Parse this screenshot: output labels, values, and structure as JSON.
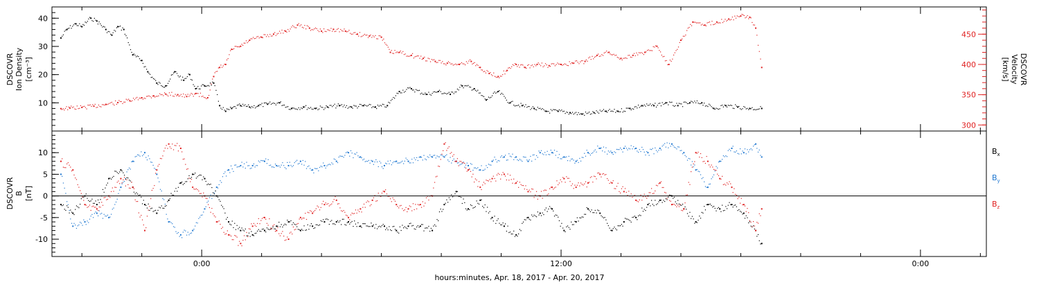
{
  "colors": {
    "black": "#000000",
    "blue": "#1f77d0",
    "red": "#e02020"
  },
  "chart_data": [
    {
      "type": "scatter",
      "panel": "plasma",
      "left_axis": {
        "label_lines": [
          "DSCOVR",
          "Ion Density",
          "[cm⁻³]"
        ],
        "ylim": [
          0,
          44
        ],
        "ticks": [
          10,
          20,
          30,
          40
        ],
        "tick_labels": [
          "10",
          "20",
          "30",
          "40"
        ]
      },
      "right_axis": {
        "label_lines": [
          "DSCOVR",
          "Velocity",
          "[km/s]"
        ],
        "ylim": [
          290,
          495
        ],
        "ticks": [
          300,
          350,
          400,
          450
        ],
        "tick_labels": [
          "300",
          "350",
          "400",
          "450"
        ]
      },
      "series": [
        {
          "color": "black",
          "axis": "left",
          "x": [
            -4.7,
            -4.5,
            -4.2,
            -4.0,
            -3.7,
            -3.5,
            -3.2,
            -3.0,
            -2.8,
            -2.6,
            -2.3,
            -2.0,
            -1.8,
            -1.5,
            -1.2,
            -0.9,
            -0.6,
            -0.4,
            -0.2,
            0.1,
            0.4,
            0.6,
            0.8,
            1.0,
            1.3,
            1.6,
            1.9,
            2.2,
            2.6,
            3.0,
            3.4,
            3.8,
            4.2,
            4.6,
            5.0,
            5.4,
            5.8,
            6.2,
            6.6,
            7.0,
            7.5,
            7.9,
            8.3,
            8.7,
            9.1,
            9.5,
            9.9,
            10.3,
            10.7,
            11.1,
            11.5,
            11.9,
            12.3,
            12.7,
            13.1,
            13.5,
            13.9,
            14.3,
            14.7,
            15.1,
            15.5,
            15.9,
            16.3,
            16.7,
            17.1,
            17.5,
            17.9,
            18.3,
            18.7
          ],
          "y": [
            33,
            36,
            38,
            37,
            40,
            39,
            36,
            34,
            37,
            36,
            27,
            25,
            21,
            17,
            16,
            21,
            18,
            20,
            15,
            16,
            17,
            9,
            7,
            8,
            9,
            8.5,
            9,
            9.5,
            10,
            8,
            8.5,
            8,
            8.5,
            9,
            8.5,
            9,
            8.5,
            9,
            14,
            15,
            13,
            14,
            13,
            16,
            15,
            11,
            14,
            10,
            9,
            8,
            7,
            7,
            6.5,
            6,
            6.5,
            7,
            7,
            8,
            9,
            9,
            10,
            9,
            10,
            10,
            8,
            9,
            8.5,
            8,
            8
          ]
        },
        {
          "color": "red",
          "axis": "right",
          "x": [
            -4.7,
            -4.4,
            -4.0,
            -3.6,
            -3.2,
            -2.8,
            -2.4,
            -2.0,
            -1.6,
            -1.2,
            -0.8,
            -0.5,
            -0.2,
            0.2,
            0.4,
            0.6,
            0.8,
            1.0,
            1.3,
            1.6,
            2.0,
            2.4,
            2.8,
            3.2,
            3.6,
            4.0,
            4.4,
            4.8,
            5.2,
            5.6,
            6.0,
            6.3,
            6.6,
            7.0,
            7.4,
            7.8,
            8.2,
            8.6,
            9.0,
            9.3,
            9.6,
            9.9,
            10.2,
            10.5,
            10.8,
            11.2,
            11.6,
            12.0,
            12.4,
            12.8,
            13.2,
            13.6,
            14.0,
            14.4,
            14.8,
            15.2,
            15.6,
            16.0,
            16.4,
            16.8,
            17.2,
            17.6,
            18.0,
            18.3,
            18.5,
            18.7
          ],
          "y": [
            327,
            328,
            329,
            331,
            334,
            337,
            340,
            345,
            348,
            351,
            350,
            347,
            352,
            345,
            380,
            395,
            400,
            425,
            430,
            440,
            445,
            450,
            455,
            465,
            460,
            455,
            458,
            455,
            450,
            447,
            445,
            420,
            420,
            415,
            410,
            405,
            402,
            400,
            405,
            395,
            385,
            380,
            390,
            400,
            395,
            400,
            398,
            400,
            402,
            405,
            415,
            420,
            410,
            415,
            420,
            430,
            400,
            440,
            470,
            465,
            470,
            475,
            480,
            478,
            460,
            395
          ]
        }
      ]
    },
    {
      "type": "scatter",
      "panel": "magnetic",
      "left_axis": {
        "label_lines": [
          "DSCOVR",
          "B",
          "[nT]"
        ],
        "ylim": [
          -14,
          15
        ],
        "ticks": [
          -10,
          -5,
          0,
          5,
          10
        ],
        "tick_labels": [
          "-10",
          "-5",
          "0",
          "5",
          "10"
        ]
      },
      "legend": [
        {
          "label": "B",
          "subscript": "x",
          "color": "black"
        },
        {
          "label": "B",
          "subscript": "y",
          "color": "blue"
        },
        {
          "label": "B",
          "subscript": "z",
          "color": "red"
        }
      ],
      "series": [
        {
          "color": "black",
          "x": [
            -4.7,
            -4.3,
            -3.9,
            -3.5,
            -3.1,
            -2.7,
            -2.3,
            -1.9,
            -1.5,
            -1.1,
            -0.7,
            -0.3,
            0.1,
            0.5,
            0.9,
            1.3,
            1.7,
            2.1,
            2.5,
            2.9,
            3.3,
            3.7,
            4.1,
            4.5,
            4.9,
            5.3,
            5.7,
            6.1,
            6.5,
            6.9,
            7.3,
            7.7,
            8.1,
            8.5,
            8.9,
            9.3,
            9.7,
            10.1,
            10.5,
            10.9,
            11.3,
            11.7,
            12.1,
            12.5,
            12.9,
            13.3,
            13.7,
            14.1,
            14.5,
            14.9,
            15.3,
            15.7,
            16.1,
            16.5,
            16.9,
            17.3,
            17.7,
            18.1,
            18.5,
            18.7
          ],
          "y": [
            -2,
            -4,
            0,
            -2,
            4,
            6,
            2,
            -2,
            -4,
            -1,
            3,
            5,
            4,
            0,
            -6,
            -8,
            -9,
            -8,
            -7,
            -6,
            -8,
            -7,
            -6,
            -6,
            -6,
            -7,
            -7,
            -7,
            -8,
            -7,
            -7,
            -8,
            -2,
            1,
            -3,
            -1,
            -5,
            -7,
            -9,
            -5,
            -4,
            -3,
            -8,
            -6,
            -3,
            -4,
            -8,
            -6,
            -5,
            -2,
            -1,
            0,
            -3,
            -6,
            -2,
            -3,
            -2,
            -4,
            -8,
            -11
          ]
        },
        {
          "color": "blue",
          "x": [
            -4.7,
            -4.3,
            -3.9,
            -3.5,
            -3.1,
            -2.7,
            -2.3,
            -1.9,
            -1.5,
            -1.1,
            -0.7,
            -0.3,
            0.1,
            0.5,
            0.9,
            1.3,
            1.7,
            2.1,
            2.5,
            2.9,
            3.3,
            3.7,
            4.1,
            4.5,
            4.9,
            5.3,
            5.7,
            6.1,
            6.5,
            6.9,
            7.3,
            7.7,
            8.1,
            8.5,
            8.9,
            9.3,
            9.7,
            10.1,
            10.5,
            10.9,
            11.3,
            11.7,
            12.1,
            12.5,
            12.9,
            13.3,
            13.7,
            14.1,
            14.5,
            14.9,
            15.3,
            15.7,
            16.1,
            16.5,
            16.9,
            17.3,
            17.7,
            18.1,
            18.5,
            18.7
          ],
          "y": [
            5,
            -7,
            -6,
            -4,
            -5,
            2,
            8,
            10,
            5,
            -6,
            -9,
            -8,
            -3,
            2,
            6,
            7,
            7,
            8,
            7,
            7,
            8,
            6,
            7,
            8,
            10,
            9,
            8,
            7,
            8,
            8,
            9,
            9,
            9,
            8,
            7,
            6,
            8,
            9,
            9,
            8,
            10,
            10,
            9,
            8,
            10,
            11,
            10,
            11,
            11,
            10,
            11,
            12,
            10,
            6,
            2,
            8,
            11,
            10,
            12,
            9
          ]
        },
        {
          "color": "red",
          "x": [
            -4.7,
            -4.3,
            -3.9,
            -3.5,
            -3.1,
            -2.7,
            -2.3,
            -1.9,
            -1.5,
            -1.1,
            -0.7,
            -0.3,
            0.1,
            0.5,
            0.9,
            1.3,
            1.7,
            2.1,
            2.5,
            2.9,
            3.3,
            3.7,
            4.1,
            4.5,
            4.9,
            5.3,
            5.7,
            6.1,
            6.5,
            6.9,
            7.3,
            7.7,
            8.1,
            8.5,
            8.9,
            9.3,
            9.7,
            10.1,
            10.5,
            10.9,
            11.3,
            11.7,
            12.1,
            12.5,
            12.9,
            13.3,
            13.7,
            14.1,
            14.5,
            14.9,
            15.3,
            15.7,
            16.1,
            16.5,
            16.9,
            17.3,
            17.7,
            18.1,
            18.5,
            18.7
          ],
          "y": [
            8,
            6,
            -2,
            -3,
            0,
            4,
            2,
            -8,
            6,
            12,
            11,
            2,
            0,
            -6,
            -9,
            -11,
            -7,
            -5,
            -8,
            -10,
            -5,
            -4,
            -2,
            -1,
            -5,
            -3,
            -1,
            1,
            -2,
            -3,
            -2,
            0,
            12,
            8,
            6,
            2,
            4,
            5,
            3,
            1,
            0,
            2,
            4,
            2,
            3,
            5,
            3,
            1,
            -1,
            0,
            3,
            -2,
            -3,
            10,
            8,
            4,
            2,
            -2,
            -8,
            -3
          ]
        }
      ]
    }
  ],
  "x_axis": {
    "xlim": [
      -5,
      26.2
    ],
    "major_ticks": [
      0,
      12,
      24
    ],
    "tick_labels": [
      "0:00",
      "12:00",
      "0:00"
    ],
    "minor_ticks": [
      -4,
      -2,
      2,
      4,
      6,
      8,
      10,
      14,
      16,
      18,
      20,
      22,
      26
    ],
    "label": "hours:minutes, Apr. 18, 2017 - Apr. 20, 2017"
  }
}
